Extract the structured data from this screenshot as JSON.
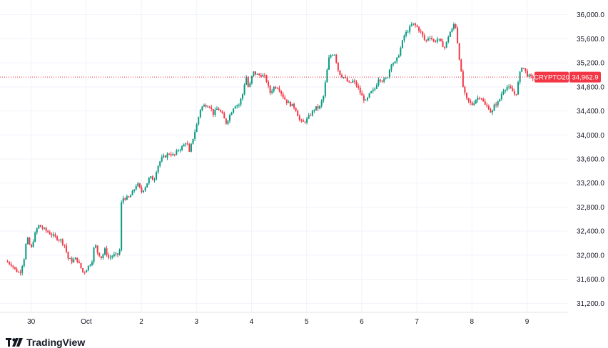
{
  "chart_data": {
    "type": "candlestick",
    "symbol_label": "CRYPTO20",
    "last_price_label": "34,962.9",
    "last_price": 34962.9,
    "y_ticks": [
      36000,
      35600,
      35200,
      34800,
      34400,
      34000,
      33600,
      33200,
      32800,
      32400,
      32000,
      31600,
      31200
    ],
    "y_tick_labels": [
      "36,000.0",
      "35,600.0",
      "35,200.0",
      "34,800.0",
      "34,400.0",
      "34,000.0",
      "33,600.0",
      "33,200.0",
      "32,800.0",
      "32,400.0",
      "32,000.0",
      "31,600.0",
      "31,200.0"
    ],
    "ylim": [
      31050,
      36150
    ],
    "x_ticks": [
      {
        "label": "30",
        "t": 36
      },
      {
        "label": "Oct",
        "t": 114
      },
      {
        "label": "2",
        "t": 192
      },
      {
        "label": "3",
        "t": 270
      },
      {
        "label": "4",
        "t": 348
      },
      {
        "label": "5",
        "t": 426
      },
      {
        "label": "6",
        "t": 504
      },
      {
        "label": "7",
        "t": 582
      },
      {
        "label": "8",
        "t": 660
      },
      {
        "label": "9",
        "t": 738
      }
    ],
    "close_path": [
      [
        0,
        31900
      ],
      [
        8,
        31850
      ],
      [
        14,
        31750
      ],
      [
        20,
        31700
      ],
      [
        26,
        31950
      ],
      [
        30,
        32300
      ],
      [
        36,
        32100
      ],
      [
        40,
        32300
      ],
      [
        46,
        32500
      ],
      [
        52,
        32450
      ],
      [
        58,
        32400
      ],
      [
        64,
        32350
      ],
      [
        70,
        32300
      ],
      [
        78,
        32250
      ],
      [
        84,
        32150
      ],
      [
        88,
        31950
      ],
      [
        94,
        31900
      ],
      [
        100,
        31950
      ],
      [
        106,
        31800
      ],
      [
        110,
        31700
      ],
      [
        116,
        31800
      ],
      [
        122,
        31900
      ],
      [
        126,
        32200
      ],
      [
        130,
        32050
      ],
      [
        136,
        31950
      ],
      [
        140,
        32100
      ],
      [
        146,
        31950
      ],
      [
        152,
        32000
      ],
      [
        158,
        32000
      ],
      [
        162,
        32100
      ],
      [
        164,
        32950
      ],
      [
        168,
        32950
      ],
      [
        174,
        32950
      ],
      [
        180,
        33050
      ],
      [
        186,
        33200
      ],
      [
        192,
        33050
      ],
      [
        198,
        33150
      ],
      [
        204,
        33300
      ],
      [
        210,
        33250
      ],
      [
        214,
        33450
      ],
      [
        220,
        33600
      ],
      [
        226,
        33650
      ],
      [
        232,
        33700
      ],
      [
        238,
        33650
      ],
      [
        244,
        33750
      ],
      [
        250,
        33800
      ],
      [
        256,
        33900
      ],
      [
        260,
        33700
      ],
      [
        264,
        33900
      ],
      [
        270,
        34150
      ],
      [
        276,
        34450
      ],
      [
        282,
        34500
      ],
      [
        288,
        34500
      ],
      [
        294,
        34350
      ],
      [
        300,
        34450
      ],
      [
        306,
        34350
      ],
      [
        312,
        34200
      ],
      [
        318,
        34350
      ],
      [
        324,
        34500
      ],
      [
        330,
        34500
      ],
      [
        336,
        34700
      ],
      [
        340,
        35000
      ],
      [
        344,
        34750
      ],
      [
        350,
        35050
      ],
      [
        356,
        35000
      ],
      [
        362,
        35000
      ],
      [
        368,
        34950
      ],
      [
        374,
        34700
      ],
      [
        380,
        34800
      ],
      [
        386,
        34800
      ],
      [
        392,
        34650
      ],
      [
        398,
        34550
      ],
      [
        404,
        34500
      ],
      [
        410,
        34450
      ],
      [
        416,
        34250
      ],
      [
        420,
        34200
      ],
      [
        426,
        34250
      ],
      [
        432,
        34350
      ],
      [
        438,
        34450
      ],
      [
        444,
        34450
      ],
      [
        450,
        34650
      ],
      [
        454,
        35000
      ],
      [
        458,
        35300
      ],
      [
        462,
        35350
      ],
      [
        466,
        35350
      ],
      [
        470,
        35100
      ],
      [
        474,
        35000
      ],
      [
        480,
        34950
      ],
      [
        486,
        34850
      ],
      [
        492,
        34900
      ],
      [
        498,
        34800
      ],
      [
        504,
        34650
      ],
      [
        510,
        34550
      ],
      [
        516,
        34700
      ],
      [
        522,
        34750
      ],
      [
        528,
        34950
      ],
      [
        534,
        34900
      ],
      [
        540,
        34950
      ],
      [
        546,
        35200
      ],
      [
        552,
        35200
      ],
      [
        558,
        35400
      ],
      [
        564,
        35650
      ],
      [
        570,
        35750
      ],
      [
        576,
        35850
      ],
      [
        582,
        35800
      ],
      [
        588,
        35700
      ],
      [
        594,
        35550
      ],
      [
        600,
        35650
      ],
      [
        606,
        35550
      ],
      [
        612,
        35600
      ],
      [
        618,
        35500
      ],
      [
        622,
        35450
      ],
      [
        628,
        35700
      ],
      [
        632,
        35750
      ],
      [
        636,
        35900
      ],
      [
        640,
        35500
      ],
      [
        644,
        35100
      ],
      [
        648,
        34750
      ],
      [
        652,
        34600
      ],
      [
        656,
        34550
      ],
      [
        660,
        34500
      ],
      [
        666,
        34600
      ],
      [
        672,
        34650
      ],
      [
        678,
        34500
      ],
      [
        684,
        34450
      ],
      [
        688,
        34350
      ],
      [
        692,
        34500
      ],
      [
        698,
        34550
      ],
      [
        704,
        34750
      ],
      [
        710,
        34800
      ],
      [
        716,
        34750
      ],
      [
        722,
        34650
      ],
      [
        726,
        34900
      ],
      [
        730,
        35150
      ],
      [
        734,
        35100
      ],
      [
        738,
        35000
      ],
      [
        744,
        34950
      ],
      [
        750,
        34962.9
      ]
    ]
  },
  "branding": {
    "logo_text": "TradingView"
  },
  "colors": {
    "up": "#089981",
    "down": "#f23645",
    "grid": "#f0f3fa",
    "price_line": "#f23645",
    "axis_text": "#131722"
  }
}
